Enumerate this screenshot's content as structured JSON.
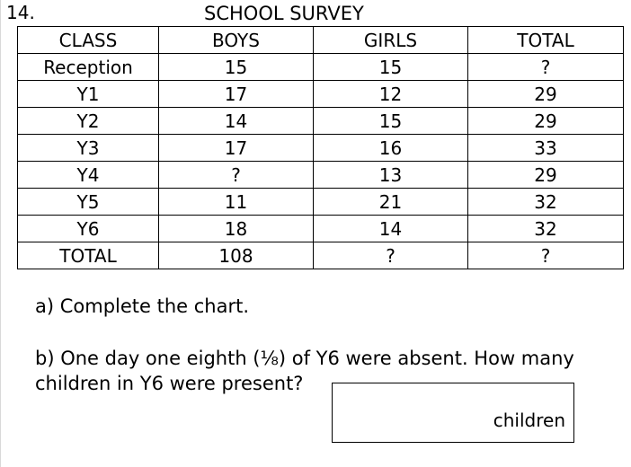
{
  "question_number": "14.",
  "title": "SCHOOL SURVEY",
  "table": {
    "headers": [
      "CLASS",
      "BOYS",
      "GIRLS",
      "TOTAL"
    ],
    "rows": [
      [
        "Reception",
        "15",
        "15",
        "?"
      ],
      [
        "Y1",
        "17",
        "12",
        "29"
      ],
      [
        "Y2",
        "14",
        "15",
        "29"
      ],
      [
        "Y3",
        "17",
        "16",
        "33"
      ],
      [
        "Y4",
        "?",
        "13",
        "29"
      ],
      [
        "Y5",
        "11",
        "21",
        "32"
      ],
      [
        "Y6",
        "18",
        "14",
        "32"
      ],
      [
        "TOTAL",
        "108",
        "?",
        "?"
      ]
    ]
  },
  "part_a": "a) Complete the chart.",
  "part_b": "b) One day one eighth (⅛) of Y6 were absent. How many children in Y6 were present?",
  "answer_unit": "children"
}
